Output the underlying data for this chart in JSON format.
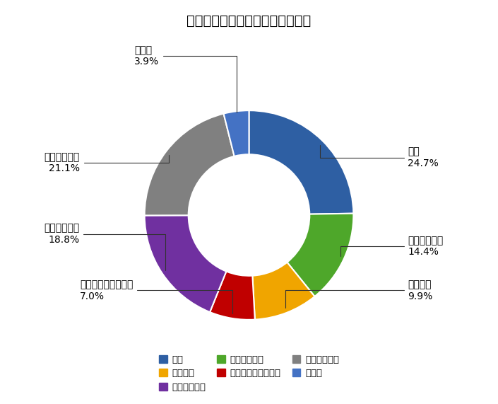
{
  "title": "住友商事　セグメント別売上構成",
  "segments": [
    {
      "label": "金属",
      "value": 24.7,
      "color": "#2E5FA3"
    },
    {
      "label": "輸送機・建機",
      "value": 14.4,
      "color": "#4EA72A"
    },
    {
      "label": "インフラ",
      "value": 9.9,
      "color": "#F0A500"
    },
    {
      "label": "メディア・デジタル",
      "value": 7.0,
      "color": "#C00000"
    },
    {
      "label": "生活・不動産",
      "value": 18.8,
      "color": "#7030A0"
    },
    {
      "label": "資源・化学品",
      "value": 21.1,
      "color": "#808080"
    },
    {
      "label": "その他",
      "value": 3.9,
      "color": "#4472C4"
    }
  ],
  "title_fontsize": 14,
  "label_fontsize": 10,
  "legend_fontsize": 9.5,
  "background_color": "#ffffff",
  "donut_width": 0.42,
  "legend_order": [
    0,
    2,
    4,
    1,
    3,
    5,
    6
  ]
}
